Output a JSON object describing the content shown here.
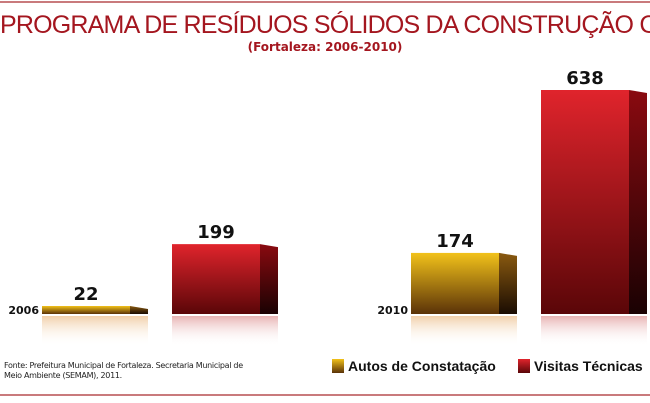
{
  "chart_data": {
    "type": "bar",
    "title": "PROGRAMA DE RESÍDUOS SÓLIDOS DA CONSTRUÇÃO CIVIL",
    "subtitle": "(Fortaleza: 2006-2010)",
    "categories": [
      "2006",
      "2010"
    ],
    "series": [
      {
        "name": "Autos de Constatação",
        "values": [
          22,
          174
        ],
        "color": "#c98a10"
      },
      {
        "name": "Visitas Técnicas",
        "values": [
          199,
          638
        ],
        "color": "#c4161f"
      }
    ],
    "ylim": [
      0,
      638
    ],
    "grid": false,
    "legend": "bottom-right"
  },
  "source": "Fonte: Prefeitura Municipal de Fortaleza. Secretaria Municipal de Meio Ambiente (SEMAM), 2011."
}
